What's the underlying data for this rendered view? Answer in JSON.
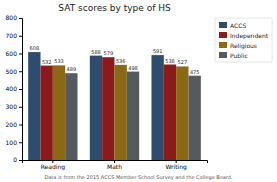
{
  "chart_data": {
    "type": "bar",
    "title": "SAT scores by type of HS",
    "categories": [
      "Reading",
      "Math",
      "Writing"
    ],
    "series": [
      {
        "name": "ACCS",
        "color": "#2e4d6e",
        "values": [
          608,
          588,
          591
        ]
      },
      {
        "name": "Independent",
        "color": "#8b1a1a",
        "values": [
          532,
          579,
          538
        ]
      },
      {
        "name": "Religious",
        "color": "#8b6914",
        "values": [
          533,
          536,
          527
        ]
      },
      {
        "name": "Public",
        "color": "#555a5e",
        "values": [
          489,
          498,
          475
        ]
      }
    ],
    "ylim": [
      0,
      800
    ],
    "yticks": [
      0,
      100,
      200,
      300,
      400,
      500,
      600,
      700,
      800
    ],
    "grid": false,
    "legend": "right",
    "data_labels": true,
    "annotations": [
      "Data is from the 2015 ACCS Member School Survey and the College Board."
    ]
  }
}
